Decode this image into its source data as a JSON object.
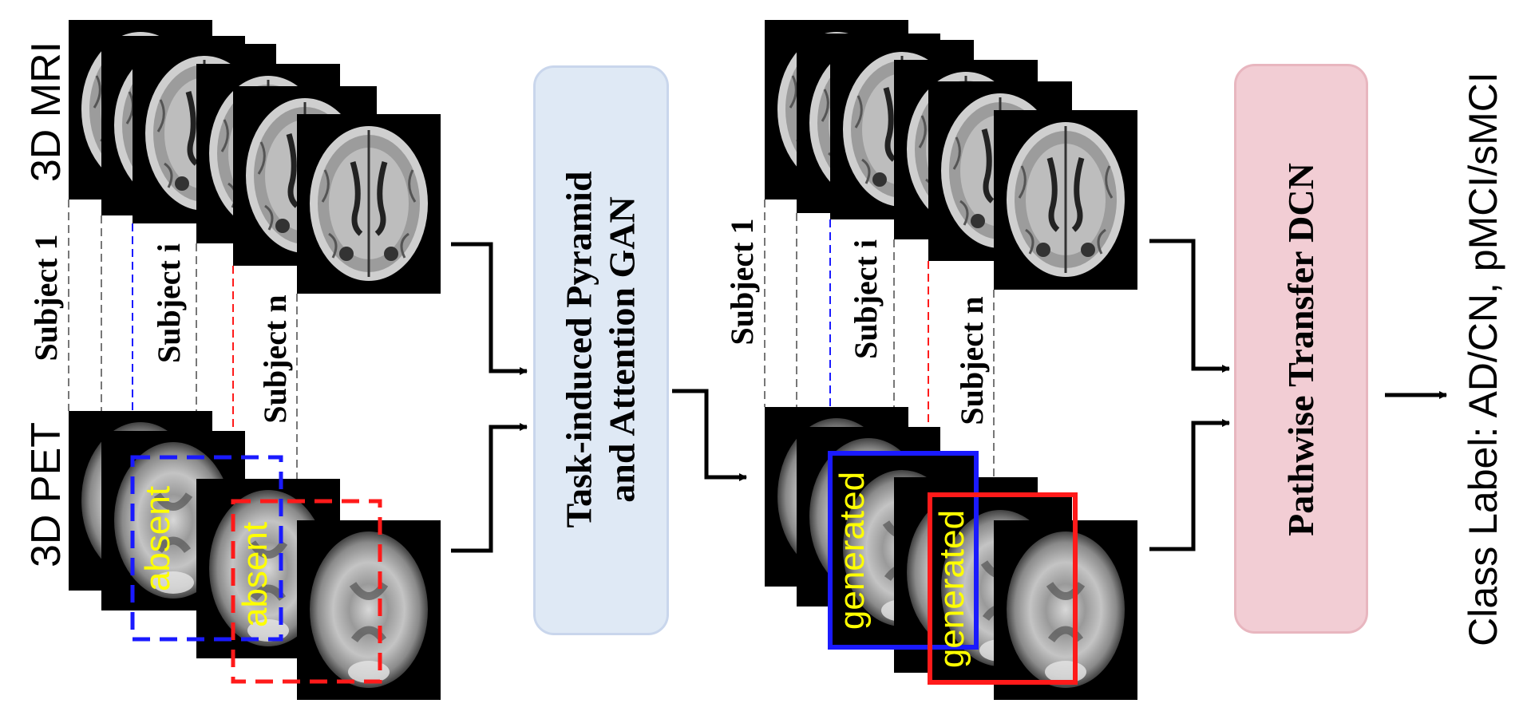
{
  "modalities": {
    "mri": "3D MRI",
    "pet": "3D PET"
  },
  "subjects": {
    "first": "Subject 1",
    "middle": "Subject i",
    "last": "Subject n"
  },
  "gan_box": {
    "line1": "Task-induced Pyramid",
    "line2": "and Attention GAN",
    "fill": "#dfe9f5",
    "border": "#c9d6ec"
  },
  "dcn_box": {
    "label": "Pathwise Transfer DCN",
    "fill": "#f2cdd4",
    "border": "#e8b6bf"
  },
  "tags": {
    "absent": "absent",
    "generated": "generated"
  },
  "class_label": "Class Label: AD/CN, pMCI/sMCI",
  "colors": {
    "blue": "#1a1aff",
    "red": "#ff1a1a",
    "yellow": "#ffff00",
    "arrow": "#000000"
  }
}
